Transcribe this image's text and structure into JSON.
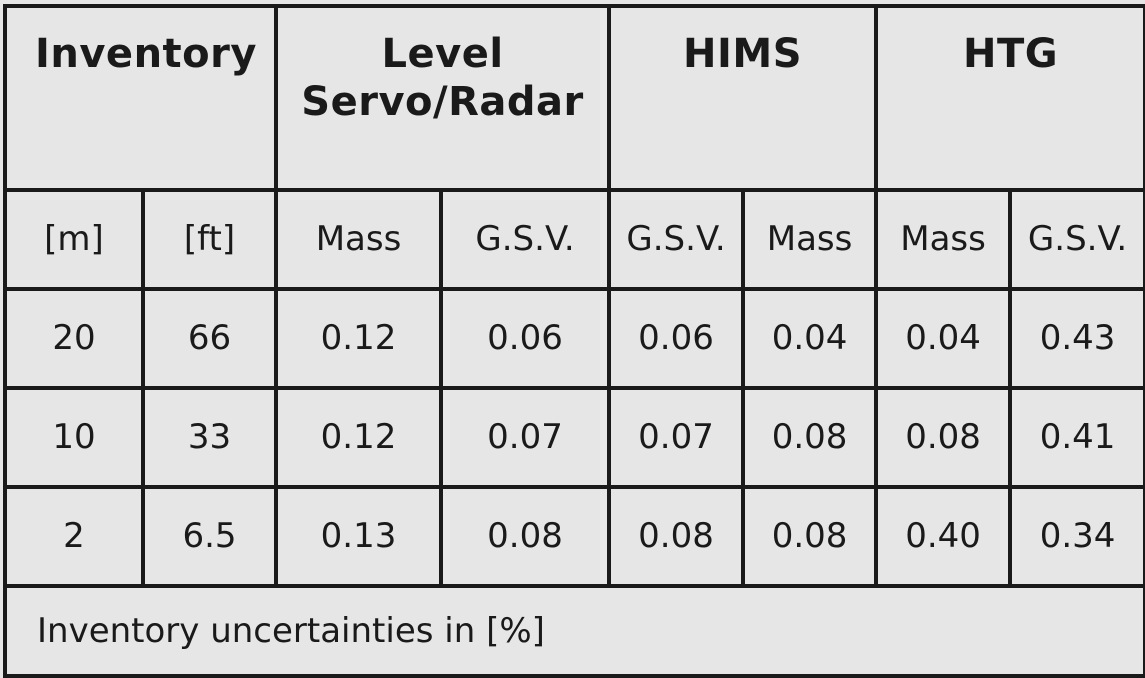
{
  "groups": {
    "inventory": "Inventory",
    "level_line1": "Level",
    "level_line2": "Servo/Radar",
    "hims": "HIMS",
    "htg": "HTG"
  },
  "subheaders": [
    "[m]",
    "[ft]",
    "Mass",
    "G.S.V.",
    "G.S.V.",
    "Mass",
    "Mass",
    "G.S.V."
  ],
  "rows": [
    [
      "20",
      "66",
      "0.12",
      "0.06",
      "0.06",
      "0.04",
      "0.04",
      "0.43"
    ],
    [
      "10",
      "33",
      "0.12",
      "0.07",
      "0.07",
      "0.08",
      "0.08",
      "0.41"
    ],
    [
      "2",
      "6.5",
      "0.13",
      "0.08",
      "0.08",
      "0.08",
      "0.40",
      "0.34"
    ]
  ],
  "footer": "Inventory uncertainties in [%]"
}
